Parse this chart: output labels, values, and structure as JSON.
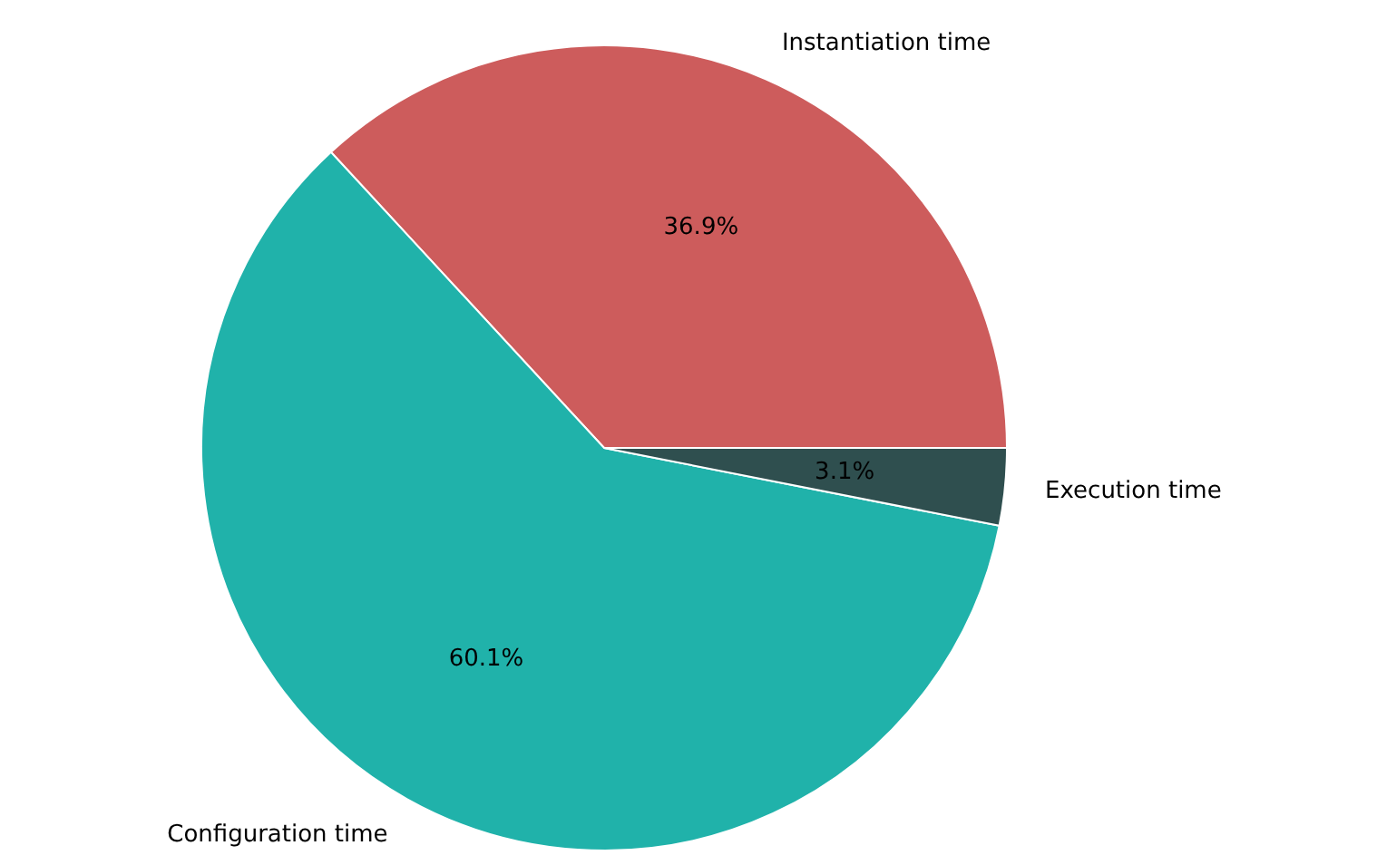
{
  "chart_data": {
    "type": "pie",
    "categories": [
      "Instantiation time",
      "Configuration time",
      "Execution time"
    ],
    "values": [
      36.9,
      60.1,
      3.1
    ],
    "colors": [
      "#cd5c5c",
      "#20b2aa",
      "#2f4f4f"
    ],
    "value_labels": [
      "36.9%",
      "60.1%",
      "3.1%"
    ]
  }
}
